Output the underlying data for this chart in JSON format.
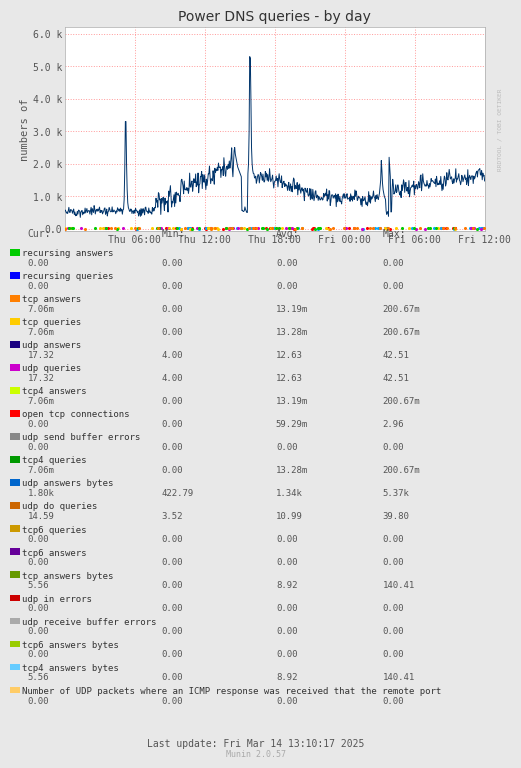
{
  "title": "Power DNS queries - by day",
  "ylabel": "numbers of",
  "background_color": "#e8e8e8",
  "plot_bg_color": "#ffffff",
  "grid_color": "#ff9999",
  "main_line_color": "#00346b",
  "watermark": "RRDTOOL / TOBI OETIKER",
  "footer": "Last update: Fri Mar 14 13:10:17 2025",
  "munin_version": "Munin 2.0.57",
  "yticks": [
    0,
    1000,
    2000,
    3000,
    4000,
    5000,
    6000
  ],
  "ytick_labels": [
    "0.0",
    "1.0 k",
    "2.0 k",
    "3.0 k",
    "4.0 k",
    "5.0 k",
    "6.0 k"
  ],
  "xtick_labels": [
    "Thu 06:00",
    "Thu 12:00",
    "Thu 18:00",
    "Fri 00:00",
    "Fri 06:00",
    "Fri 12:00"
  ],
  "legend_items": [
    {
      "color": "#00cc00",
      "label": "recursing answers",
      "cur": "0.00",
      "min": "0.00",
      "avg": "0.00",
      "max": "0.00"
    },
    {
      "color": "#0000ff",
      "label": "recursing queries",
      "cur": "0.00",
      "min": "0.00",
      "avg": "0.00",
      "max": "0.00"
    },
    {
      "color": "#ff7f00",
      "label": "tcp answers",
      "cur": "7.06m",
      "min": "0.00",
      "avg": "13.19m",
      "max": "200.67m"
    },
    {
      "color": "#ffcc00",
      "label": "tcp queries",
      "cur": "7.06m",
      "min": "0.00",
      "avg": "13.28m",
      "max": "200.67m"
    },
    {
      "color": "#1a0080",
      "label": "udp answers",
      "cur": "17.32",
      "min": "4.00",
      "avg": "12.63",
      "max": "42.51"
    },
    {
      "color": "#cc00cc",
      "label": "udp queries",
      "cur": "17.32",
      "min": "4.00",
      "avg": "12.63",
      "max": "42.51"
    },
    {
      "color": "#ccff00",
      "label": "tcp4 answers",
      "cur": "7.06m",
      "min": "0.00",
      "avg": "13.19m",
      "max": "200.67m"
    },
    {
      "color": "#ff0000",
      "label": "open tcp connections",
      "cur": "0.00",
      "min": "0.00",
      "avg": "59.29m",
      "max": "2.96"
    },
    {
      "color": "#888888",
      "label": "udp send buffer errors",
      "cur": "0.00",
      "min": "0.00",
      "avg": "0.00",
      "max": "0.00"
    },
    {
      "color": "#009900",
      "label": "tcp4 queries",
      "cur": "7.06m",
      "min": "0.00",
      "avg": "13.28m",
      "max": "200.67m"
    },
    {
      "color": "#0066cc",
      "label": "udp answers bytes",
      "cur": "1.80k",
      "min": "422.79",
      "avg": "1.34k",
      "max": "5.37k"
    },
    {
      "color": "#cc6600",
      "label": "udp do queries",
      "cur": "14.59",
      "min": "3.52",
      "avg": "10.99",
      "max": "39.80"
    },
    {
      "color": "#cc9900",
      "label": "tcp6 queries",
      "cur": "0.00",
      "min": "0.00",
      "avg": "0.00",
      "max": "0.00"
    },
    {
      "color": "#660099",
      "label": "tcp6 answers",
      "cur": "0.00",
      "min": "0.00",
      "avg": "0.00",
      "max": "0.00"
    },
    {
      "color": "#669900",
      "label": "tcp answers bytes",
      "cur": "5.56",
      "min": "0.00",
      "avg": "8.92",
      "max": "140.41"
    },
    {
      "color": "#cc0000",
      "label": "udp in errors",
      "cur": "0.00",
      "min": "0.00",
      "avg": "0.00",
      "max": "0.00"
    },
    {
      "color": "#aaaaaa",
      "label": "udp receive buffer errors",
      "cur": "0.00",
      "min": "0.00",
      "avg": "0.00",
      "max": "0.00"
    },
    {
      "color": "#99cc00",
      "label": "tcp6 answers bytes",
      "cur": "0.00",
      "min": "0.00",
      "avg": "0.00",
      "max": "0.00"
    },
    {
      "color": "#66ccff",
      "label": "tcp4 answers bytes",
      "cur": "5.56",
      "min": "0.00",
      "avg": "8.92",
      "max": "140.41"
    },
    {
      "color": "#ffcc66",
      "label": "Number of UDP packets where an ICMP response was received that the remote port",
      "cur": "0.00",
      "min": "0.00",
      "avg": "0.00",
      "max": "0.00"
    }
  ]
}
